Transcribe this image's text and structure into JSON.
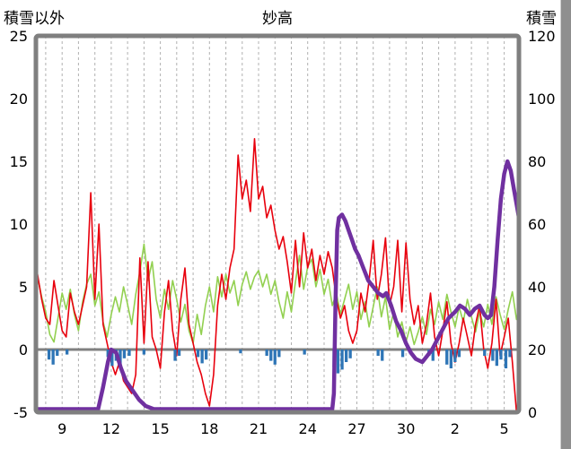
{
  "header": {
    "left_axis_title": "積雪以外",
    "title": "妙高",
    "right_axis_title": "積雪"
  },
  "chart_data": {
    "type": "line",
    "title": "妙高",
    "left_axis": {
      "label": "積雪以外",
      "min": -5,
      "max": 25,
      "ticks": [
        25,
        20,
        15,
        10,
        5,
        0,
        -5
      ]
    },
    "right_axis": {
      "label": "積雪",
      "min": 0,
      "max": 120,
      "ticks": [
        120,
        100,
        80,
        60,
        40,
        20,
        0
      ]
    },
    "x_axis": {
      "domain": [
        7.4,
        36.9
      ],
      "day_gridline_step": 1,
      "tick_days": [
        9,
        12,
        15,
        18,
        21,
        24,
        27,
        30,
        33,
        36
      ],
      "tick_labels": [
        "9",
        "12",
        "15",
        "18",
        "21",
        "24",
        "27",
        "30",
        "2",
        "5"
      ]
    },
    "zero_line": 0,
    "frame_color": "#7f7f7f",
    "grid_color": "#b0b0b0",
    "zero_line_color": "#808080",
    "series": [
      {
        "name": "green-line",
        "axis": "left",
        "type": "line",
        "color": "#92d050",
        "width": 1.6,
        "x_start": 7.5,
        "x_step": 0.25,
        "values": [
          5.8,
          4.2,
          3,
          1.2,
          0.6,
          2.5,
          4.5,
          3.2,
          4.8,
          2.8,
          1.5,
          3.8,
          5.2,
          6,
          3.5,
          4.6,
          2.2,
          1,
          2.8,
          4.2,
          3,
          5,
          3.6,
          2,
          4.4,
          6.2,
          8.4,
          5.5,
          7,
          4,
          2.5,
          4.8,
          3.2,
          5.5,
          4,
          2.2,
          3.6,
          1.5,
          0.5,
          2.8,
          1.2,
          3.5,
          5,
          3,
          5.8,
          4.2,
          6,
          4.5,
          5.5,
          3.5,
          5.2,
          6.2,
          4.8,
          5.8,
          6.3,
          5,
          6,
          4.4,
          5.5,
          3.8,
          2.5,
          4.6,
          3,
          5.4,
          7.5,
          4.8,
          6.6,
          7.2,
          5,
          6.4,
          4.4,
          5.6,
          3.5,
          4.5,
          2.8,
          4,
          5.2,
          3.2,
          4.6,
          2.4,
          3.8,
          1.8,
          3.4,
          5,
          2.6,
          4.2,
          1.6,
          3,
          1,
          2.2,
          0.6,
          1.8,
          0.4,
          1.4,
          2.6,
          1.2,
          3.2,
          2,
          3.8,
          2.4,
          4.4,
          3,
          1.8,
          3.4,
          2.2,
          4,
          2.6,
          1.4,
          3,
          1.8,
          3.6,
          2,
          4.2,
          2.8,
          1.6,
          3.2,
          4.6,
          2.4
        ]
      },
      {
        "name": "red-line",
        "axis": "left",
        "type": "line",
        "color": "#e8000d",
        "width": 1.6,
        "x_start": 7.5,
        "x_step": 0.25,
        "values": [
          6,
          4,
          2.5,
          2,
          5.5,
          3.5,
          1.5,
          1,
          4.5,
          3,
          2,
          3.5,
          5,
          12.5,
          4,
          10,
          2,
          0.5,
          -1,
          -2,
          -1,
          -2.5,
          -3,
          -3.5,
          -2,
          7.3,
          0.5,
          7,
          1,
          0,
          -1.5,
          3,
          5.5,
          1.5,
          -0.5,
          4,
          6.5,
          2,
          0.5,
          -1,
          -2,
          -3.5,
          -4.5,
          -2,
          3.5,
          6,
          4,
          6.5,
          8,
          15.5,
          12,
          13.5,
          11,
          16.8,
          12,
          13,
          10.5,
          11.5,
          9.5,
          8,
          9,
          7,
          4.5,
          8.7,
          5,
          9.3,
          6.5,
          8,
          5.5,
          7.5,
          6,
          7.8,
          6.5,
          4,
          2.5,
          3.5,
          1.5,
          0.5,
          1.5,
          4.5,
          3,
          5.5,
          8.7,
          4,
          6,
          8.9,
          3.5,
          5,
          8.7,
          3,
          8.5,
          4,
          2,
          3.5,
          0.5,
          2,
          4.5,
          1,
          -0.5,
          1.5,
          3.8,
          0.5,
          -1,
          0.5,
          2.5,
          1,
          -0.5,
          2,
          3.5,
          0,
          -1.5,
          0.5,
          4,
          -0.5,
          1,
          2.5,
          -1,
          -5
        ]
      },
      {
        "name": "blue-bars",
        "axis": "left",
        "type": "bar",
        "color": "#2e75b6",
        "bar_width_days": 0.18,
        "points": [
          [
            8.2,
            -0.8
          ],
          [
            8.45,
            -1.2
          ],
          [
            8.7,
            -0.5
          ],
          [
            9.3,
            -0.4
          ],
          [
            11.8,
            -0.6
          ],
          [
            12.05,
            -1.3
          ],
          [
            12.3,
            -0.9
          ],
          [
            12.55,
            -1.4
          ],
          [
            12.8,
            -0.7
          ],
          [
            13.1,
            -0.5
          ],
          [
            14.0,
            -0.4
          ],
          [
            15.9,
            -0.9
          ],
          [
            16.15,
            -0.5
          ],
          [
            17.3,
            -0.6
          ],
          [
            17.55,
            -1.1
          ],
          [
            17.8,
            -0.8
          ],
          [
            19.9,
            -0.3
          ],
          [
            21.5,
            -0.5
          ],
          [
            21.75,
            -0.9
          ],
          [
            22.0,
            -1.2
          ],
          [
            22.25,
            -0.6
          ],
          [
            23.8,
            -0.4
          ],
          [
            25.6,
            -1.4
          ],
          [
            25.85,
            -1.9
          ],
          [
            26.1,
            -1.6
          ],
          [
            26.35,
            -1.0
          ],
          [
            26.6,
            -0.7
          ],
          [
            28.3,
            -0.5
          ],
          [
            28.55,
            -0.9
          ],
          [
            29.8,
            -0.6
          ],
          [
            31.4,
            -0.5
          ],
          [
            31.65,
            -0.9
          ],
          [
            32.5,
            -1.2
          ],
          [
            32.75,
            -1.5
          ],
          [
            33.0,
            -1.0
          ],
          [
            33.25,
            -0.6
          ],
          [
            34.8,
            -0.5
          ],
          [
            35.3,
            -0.9
          ],
          [
            35.55,
            -1.3
          ],
          [
            35.8,
            -0.8
          ],
          [
            36.1,
            -1.5
          ],
          [
            36.35,
            -0.6
          ]
        ]
      },
      {
        "name": "purple-line",
        "axis": "right",
        "type": "line",
        "color": "#7030a0",
        "width": 4.5,
        "points": [
          [
            7.4,
            1
          ],
          [
            11.2,
            1
          ],
          [
            11.5,
            8
          ],
          [
            11.8,
            16
          ],
          [
            12.0,
            20
          ],
          [
            12.3,
            19
          ],
          [
            12.6,
            14
          ],
          [
            12.9,
            10
          ],
          [
            13.3,
            7
          ],
          [
            13.7,
            4
          ],
          [
            14.1,
            2
          ],
          [
            14.6,
            1
          ],
          [
            15.2,
            1
          ],
          [
            25.5,
            1
          ],
          [
            25.6,
            6
          ],
          [
            25.7,
            35
          ],
          [
            25.8,
            58
          ],
          [
            25.9,
            62
          ],
          [
            26.1,
            63
          ],
          [
            26.3,
            61
          ],
          [
            26.5,
            58
          ],
          [
            26.7,
            55
          ],
          [
            26.9,
            52
          ],
          [
            27.1,
            50
          ],
          [
            27.4,
            46
          ],
          [
            27.7,
            42
          ],
          [
            28.0,
            40
          ],
          [
            28.3,
            38
          ],
          [
            28.6,
            37
          ],
          [
            28.8,
            38
          ],
          [
            29.1,
            34
          ],
          [
            29.4,
            29
          ],
          [
            29.7,
            26
          ],
          [
            30.0,
            22
          ],
          [
            30.3,
            19
          ],
          [
            30.6,
            17
          ],
          [
            31.0,
            16
          ],
          [
            31.3,
            18
          ],
          [
            31.6,
            20
          ],
          [
            32.0,
            24
          ],
          [
            32.3,
            27
          ],
          [
            32.6,
            30
          ],
          [
            33.0,
            32
          ],
          [
            33.3,
            34
          ],
          [
            33.6,
            33
          ],
          [
            33.9,
            31
          ],
          [
            34.2,
            33
          ],
          [
            34.5,
            34
          ],
          [
            34.8,
            31
          ],
          [
            35.0,
            30
          ],
          [
            35.2,
            31
          ],
          [
            35.4,
            40
          ],
          [
            35.6,
            55
          ],
          [
            35.8,
            68
          ],
          [
            36.0,
            76
          ],
          [
            36.2,
            80
          ],
          [
            36.4,
            77
          ],
          [
            36.6,
            71
          ],
          [
            36.8,
            65
          ],
          [
            36.9,
            62
          ]
        ]
      }
    ]
  }
}
